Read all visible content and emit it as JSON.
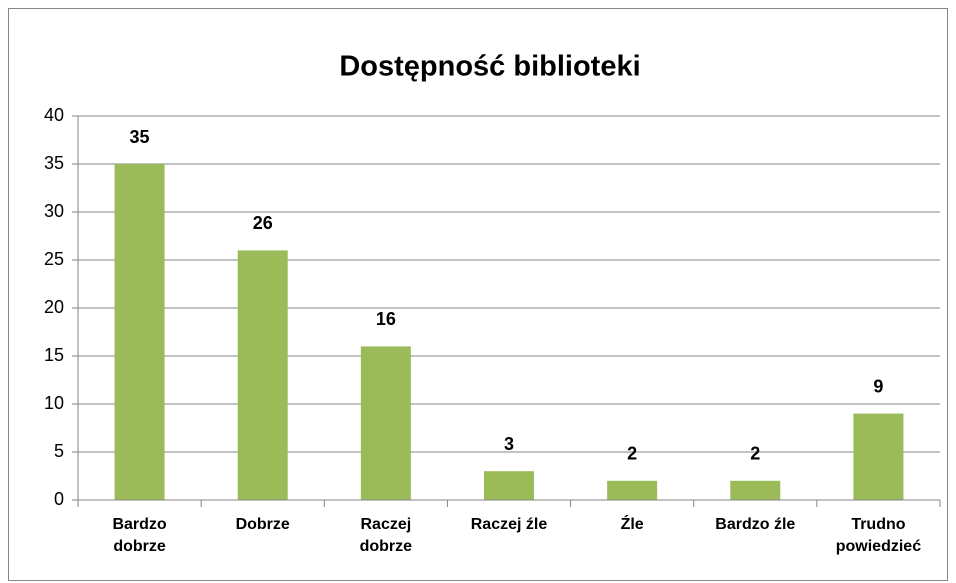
{
  "chart_data": {
    "type": "bar",
    "title": "Dostępność biblioteki",
    "categories": [
      "Bardzo dobrze",
      "Dobrze",
      "Raczej dobrze",
      "Raczej źle",
      "Źle",
      "Bardzo źle",
      "Trudno powiedzieć"
    ],
    "values": [
      35,
      26,
      16,
      3,
      2,
      2,
      9
    ],
    "color": "#9bbb59",
    "ylim": [
      0,
      40
    ],
    "yticks": [
      0,
      5,
      10,
      15,
      20,
      25,
      30,
      35,
      40
    ],
    "grid": true
  }
}
